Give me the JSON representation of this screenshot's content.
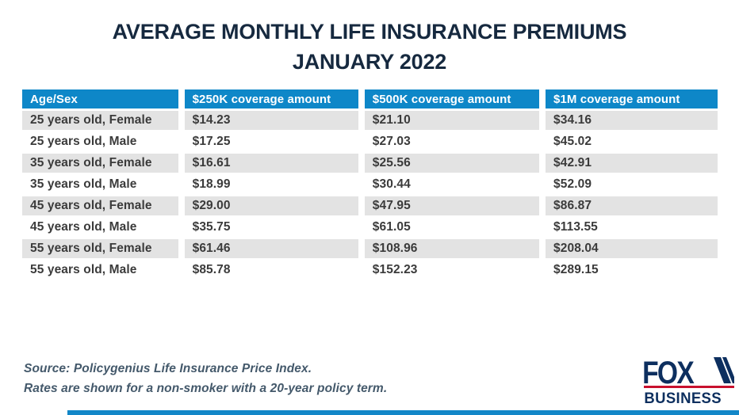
{
  "title": {
    "line1": "AVERAGE MONTHLY LIFE INSURANCE PREMIUMS",
    "line2": "JANUARY 2022"
  },
  "table": {
    "columns": [
      "Age/Sex",
      "$250K coverage amount",
      "$500K coverage amount",
      "$1M coverage amount"
    ],
    "rows": [
      [
        "25 years old, Female",
        "$14.23",
        "$21.10",
        "$34.16"
      ],
      [
        "25 years old, Male",
        "$17.25",
        "$27.03",
        "$45.02"
      ],
      [
        "35 years old, Female",
        "$16.61",
        "$25.56",
        "$42.91"
      ],
      [
        "35 years old, Male",
        "$18.99",
        "$30.44",
        "$52.09"
      ],
      [
        "45 years old, Female",
        "$29.00",
        "$47.95",
        "$86.87"
      ],
      [
        "45 years old, Male",
        "$35.75",
        "$61.05",
        "$113.55"
      ],
      [
        "55 years old, Female",
        "$61.46",
        "$108.96",
        "$208.04"
      ],
      [
        "55 years old, Male",
        "$85.78",
        "$152.23",
        "$289.15"
      ]
    ]
  },
  "chart_data": {
    "type": "table",
    "title": "AVERAGE MONTHLY LIFE INSURANCE PREMIUMS JANUARY 2022",
    "categories": [
      "25 years old, Female",
      "25 years old, Male",
      "35 years old, Female",
      "35 years old, Male",
      "45 years old, Female",
      "45 years old, Male",
      "55 years old, Female",
      "55 years old, Male"
    ],
    "series": [
      {
        "name": "$250K coverage amount",
        "values": [
          14.23,
          17.25,
          16.61,
          18.99,
          29.0,
          35.75,
          61.46,
          85.78
        ]
      },
      {
        "name": "$500K coverage amount",
        "values": [
          21.1,
          27.03,
          25.56,
          30.44,
          47.95,
          61.05,
          108.96,
          152.23
        ]
      },
      {
        "name": "$1M coverage amount",
        "values": [
          34.16,
          45.02,
          42.91,
          52.09,
          86.87,
          113.55,
          208.04,
          289.15
        ]
      }
    ]
  },
  "source": {
    "line1": "Source: Policygenius Life Insurance Price Index.",
    "line2": "Rates are shown for a non-smoker with a 20-year policy term."
  },
  "logo": {
    "brand": "FOX",
    "sub": "BUSINESS"
  },
  "colors": {
    "header_blue": "#0e87c8",
    "row_gray": "#e3e3e3",
    "title_navy": "#16293f",
    "source_slate": "#44596b",
    "logo_navy": "#0d2f5f",
    "logo_red": "#c8102e",
    "accent_bar": "#1287c8"
  }
}
